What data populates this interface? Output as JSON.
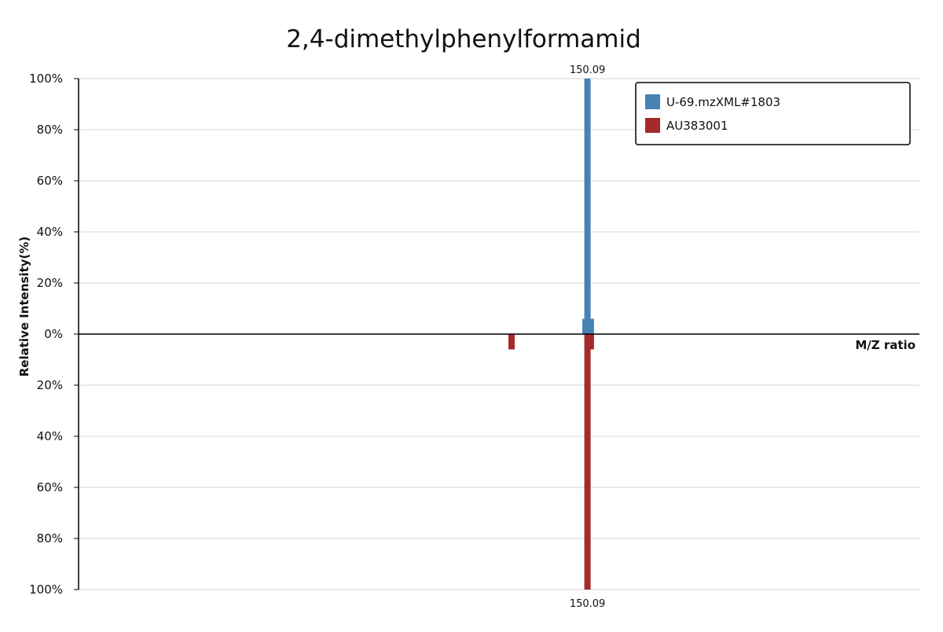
{
  "chart_data": {
    "type": "bar",
    "title": "2,4-dimethylphenylformamid",
    "xlabel": "M/Z ratio",
    "ylabel": "Relative Intensity(%)",
    "ylim": [
      -100,
      100
    ],
    "xlim": [
      0,
      248
    ],
    "y_ticks": [
      "100%",
      "80%",
      "60%",
      "40%",
      "20%",
      "0%",
      "20%",
      "40%",
      "60%",
      "80%",
      "100%"
    ],
    "grid": true,
    "legend_position": "top-right",
    "series": [
      {
        "name": "U-69.mzXML#1803",
        "color": "#4682b4",
        "direction": "up",
        "peaks": [
          {
            "mz": 150.09,
            "intensity": 100,
            "label": "150.09"
          },
          {
            "mz": 149.5,
            "intensity": 6
          },
          {
            "mz": 151.1,
            "intensity": 6
          }
        ]
      },
      {
        "name": "AU383001",
        "color": "#a52a2a",
        "direction": "down",
        "peaks": [
          {
            "mz": 150.09,
            "intensity": 100,
            "label": "150.09"
          },
          {
            "mz": 127.7,
            "intensity": 6
          },
          {
            "mz": 151.1,
            "intensity": 6
          }
        ]
      }
    ]
  }
}
